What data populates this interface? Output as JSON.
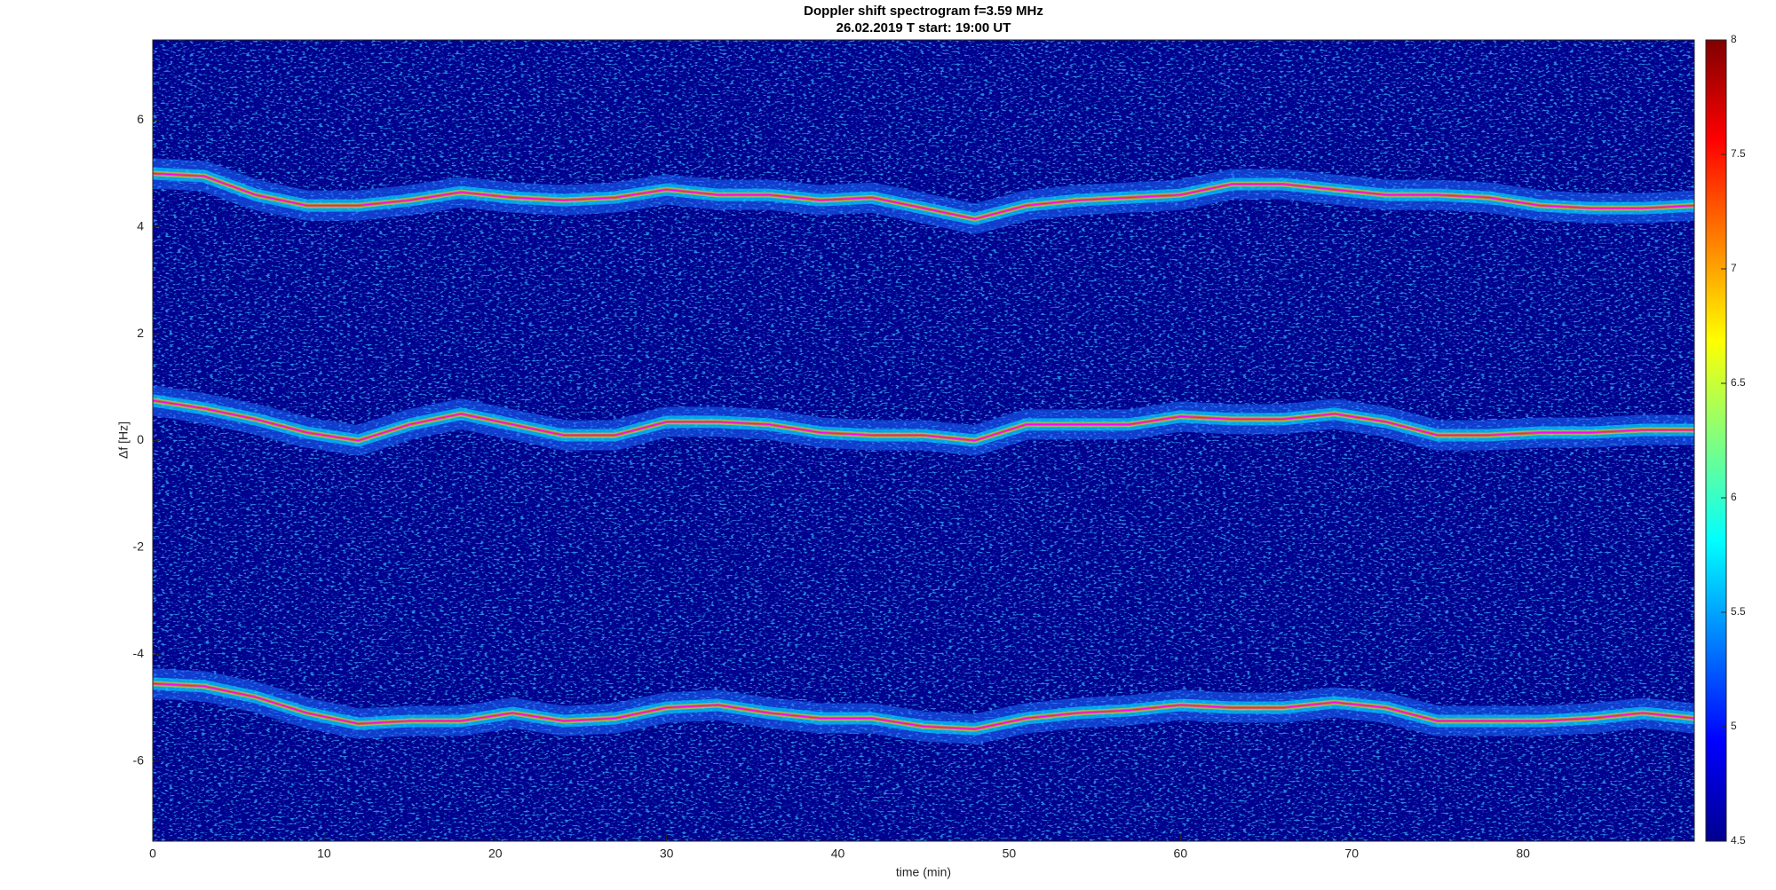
{
  "chart_data": {
    "type": "spectrogram",
    "title": [
      "Doppler shift spectrogram f=3.59 MHz",
      "26.02.2019   T start: 19:00 UT"
    ],
    "x_label": "time (min)",
    "y_label": "Δf [Hz]",
    "x": [
      0,
      3,
      6,
      9,
      12,
      15,
      18,
      21,
      24,
      27,
      30,
      33,
      36,
      39,
      42,
      45,
      48,
      51,
      54,
      57,
      60,
      63,
      66,
      69,
      72,
      75,
      78,
      81,
      84,
      87,
      90
    ],
    "series": [
      {
        "color": "#ff00ff",
        "values": [
          5.0,
          4.95,
          4.6,
          4.4,
          4.4,
          4.5,
          4.65,
          4.55,
          4.5,
          4.55,
          4.7,
          4.6,
          4.6,
          4.5,
          4.55,
          4.35,
          4.15,
          4.4,
          4.5,
          4.55,
          4.6,
          4.8,
          4.8,
          4.7,
          4.6,
          4.6,
          4.55,
          4.4,
          4.35,
          4.35,
          4.4
        ]
      },
      {
        "color": "#ff00ff",
        "values": [
          0.75,
          0.6,
          0.4,
          0.15,
          0.0,
          0.3,
          0.5,
          0.3,
          0.1,
          0.1,
          0.35,
          0.35,
          0.3,
          0.15,
          0.1,
          0.1,
          0.0,
          0.3,
          0.3,
          0.3,
          0.45,
          0.4,
          0.4,
          0.5,
          0.35,
          0.1,
          0.1,
          0.15,
          0.15,
          0.2,
          0.2
        ]
      },
      {
        "color": "#ff00ff",
        "values": [
          -4.55,
          -4.6,
          -4.8,
          -5.1,
          -5.3,
          -5.25,
          -5.25,
          -5.1,
          -5.25,
          -5.2,
          -5.0,
          -4.95,
          -5.1,
          -5.2,
          -5.2,
          -5.35,
          -5.4,
          -5.2,
          -5.1,
          -5.05,
          -4.95,
          -5.0,
          -5.0,
          -4.9,
          -5.0,
          -5.25,
          -5.25,
          -5.25,
          -5.2,
          -5.1,
          -5.2
        ]
      }
    ],
    "xlim": [
      0,
      90
    ],
    "xticks": [
      0,
      10,
      20,
      30,
      40,
      50,
      60,
      70,
      80
    ],
    "ylim": [
      -7.5,
      7.5
    ],
    "yticks": [
      -6,
      -4,
      -2,
      0,
      2,
      4,
      6
    ],
    "colorbar": {
      "lim": [
        4.5,
        8
      ],
      "ticks": [
        4.5,
        5,
        5.5,
        6,
        6.5,
        7,
        7.5,
        8
      ]
    }
  }
}
